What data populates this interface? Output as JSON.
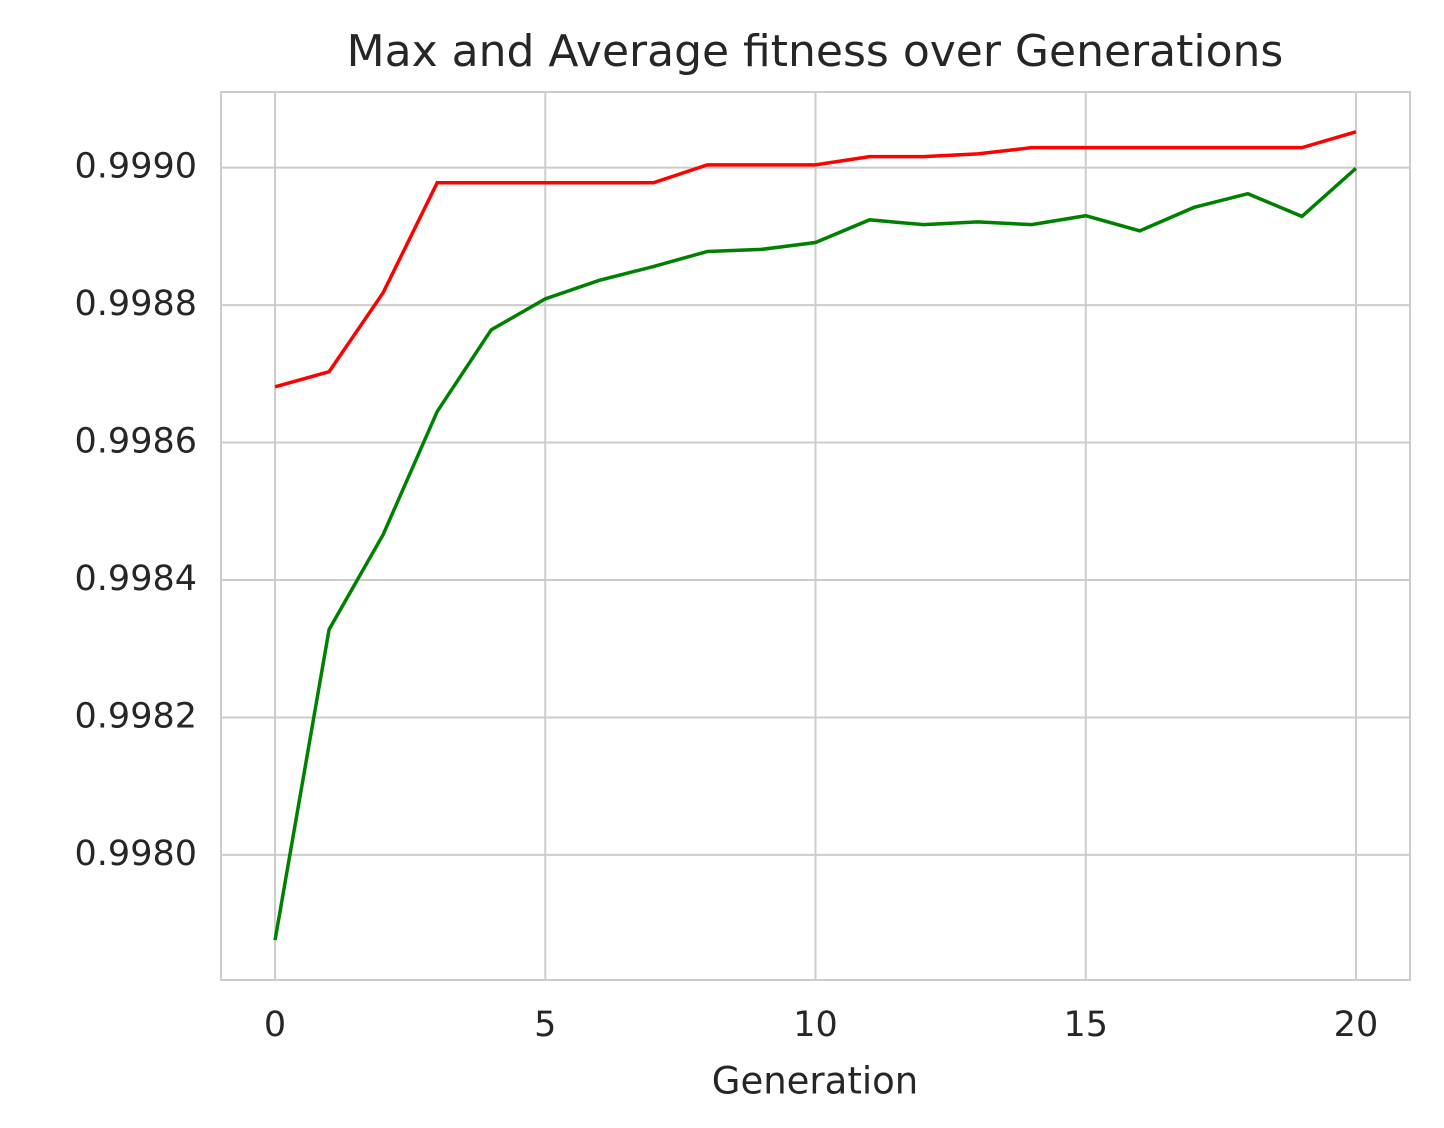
{
  "chart_data": {
    "type": "line",
    "title": "Max and Average fitness over Generations",
    "x_label": "Generation",
    "x": [
      0,
      1,
      2,
      3,
      4,
      5,
      6,
      7,
      8,
      9,
      10,
      11,
      12,
      13,
      14,
      15,
      16,
      17,
      18,
      19,
      20
    ],
    "series": [
      {
        "color": "#ff0000",
        "values": [
          0.998681,
          0.998703,
          0.998818,
          0.998978,
          0.998978,
          0.998978,
          0.998978,
          0.998978,
          0.999004,
          0.999004,
          0.999004,
          0.999016,
          0.999016,
          0.99902,
          0.999029,
          0.999029,
          0.999029,
          0.999029,
          0.999029,
          0.999029,
          0.999052
        ]
      },
      {
        "color": "#008000",
        "values": [
          0.997876,
          0.998328,
          0.998466,
          0.998645,
          0.998764,
          0.998809,
          0.998836,
          0.998856,
          0.998878,
          0.998881,
          0.998891,
          0.998924,
          0.998917,
          0.998921,
          0.998917,
          0.99893,
          0.998908,
          0.998942,
          0.998962,
          0.998929,
          0.998999
        ]
      }
    ],
    "xlim": [
      -1,
      21
    ],
    "xticks": [
      0,
      5,
      10,
      15,
      20
    ],
    "ylim": [
      0.997818,
      0.99911
    ],
    "yticks": [
      {
        "value": 0.998,
        "label": "0.9980"
      },
      0.9982,
      0.9984,
      0.9986,
      0.9988,
      {
        "value": 0.999,
        "label": "0.9990"
      }
    ],
    "grid": true
  }
}
